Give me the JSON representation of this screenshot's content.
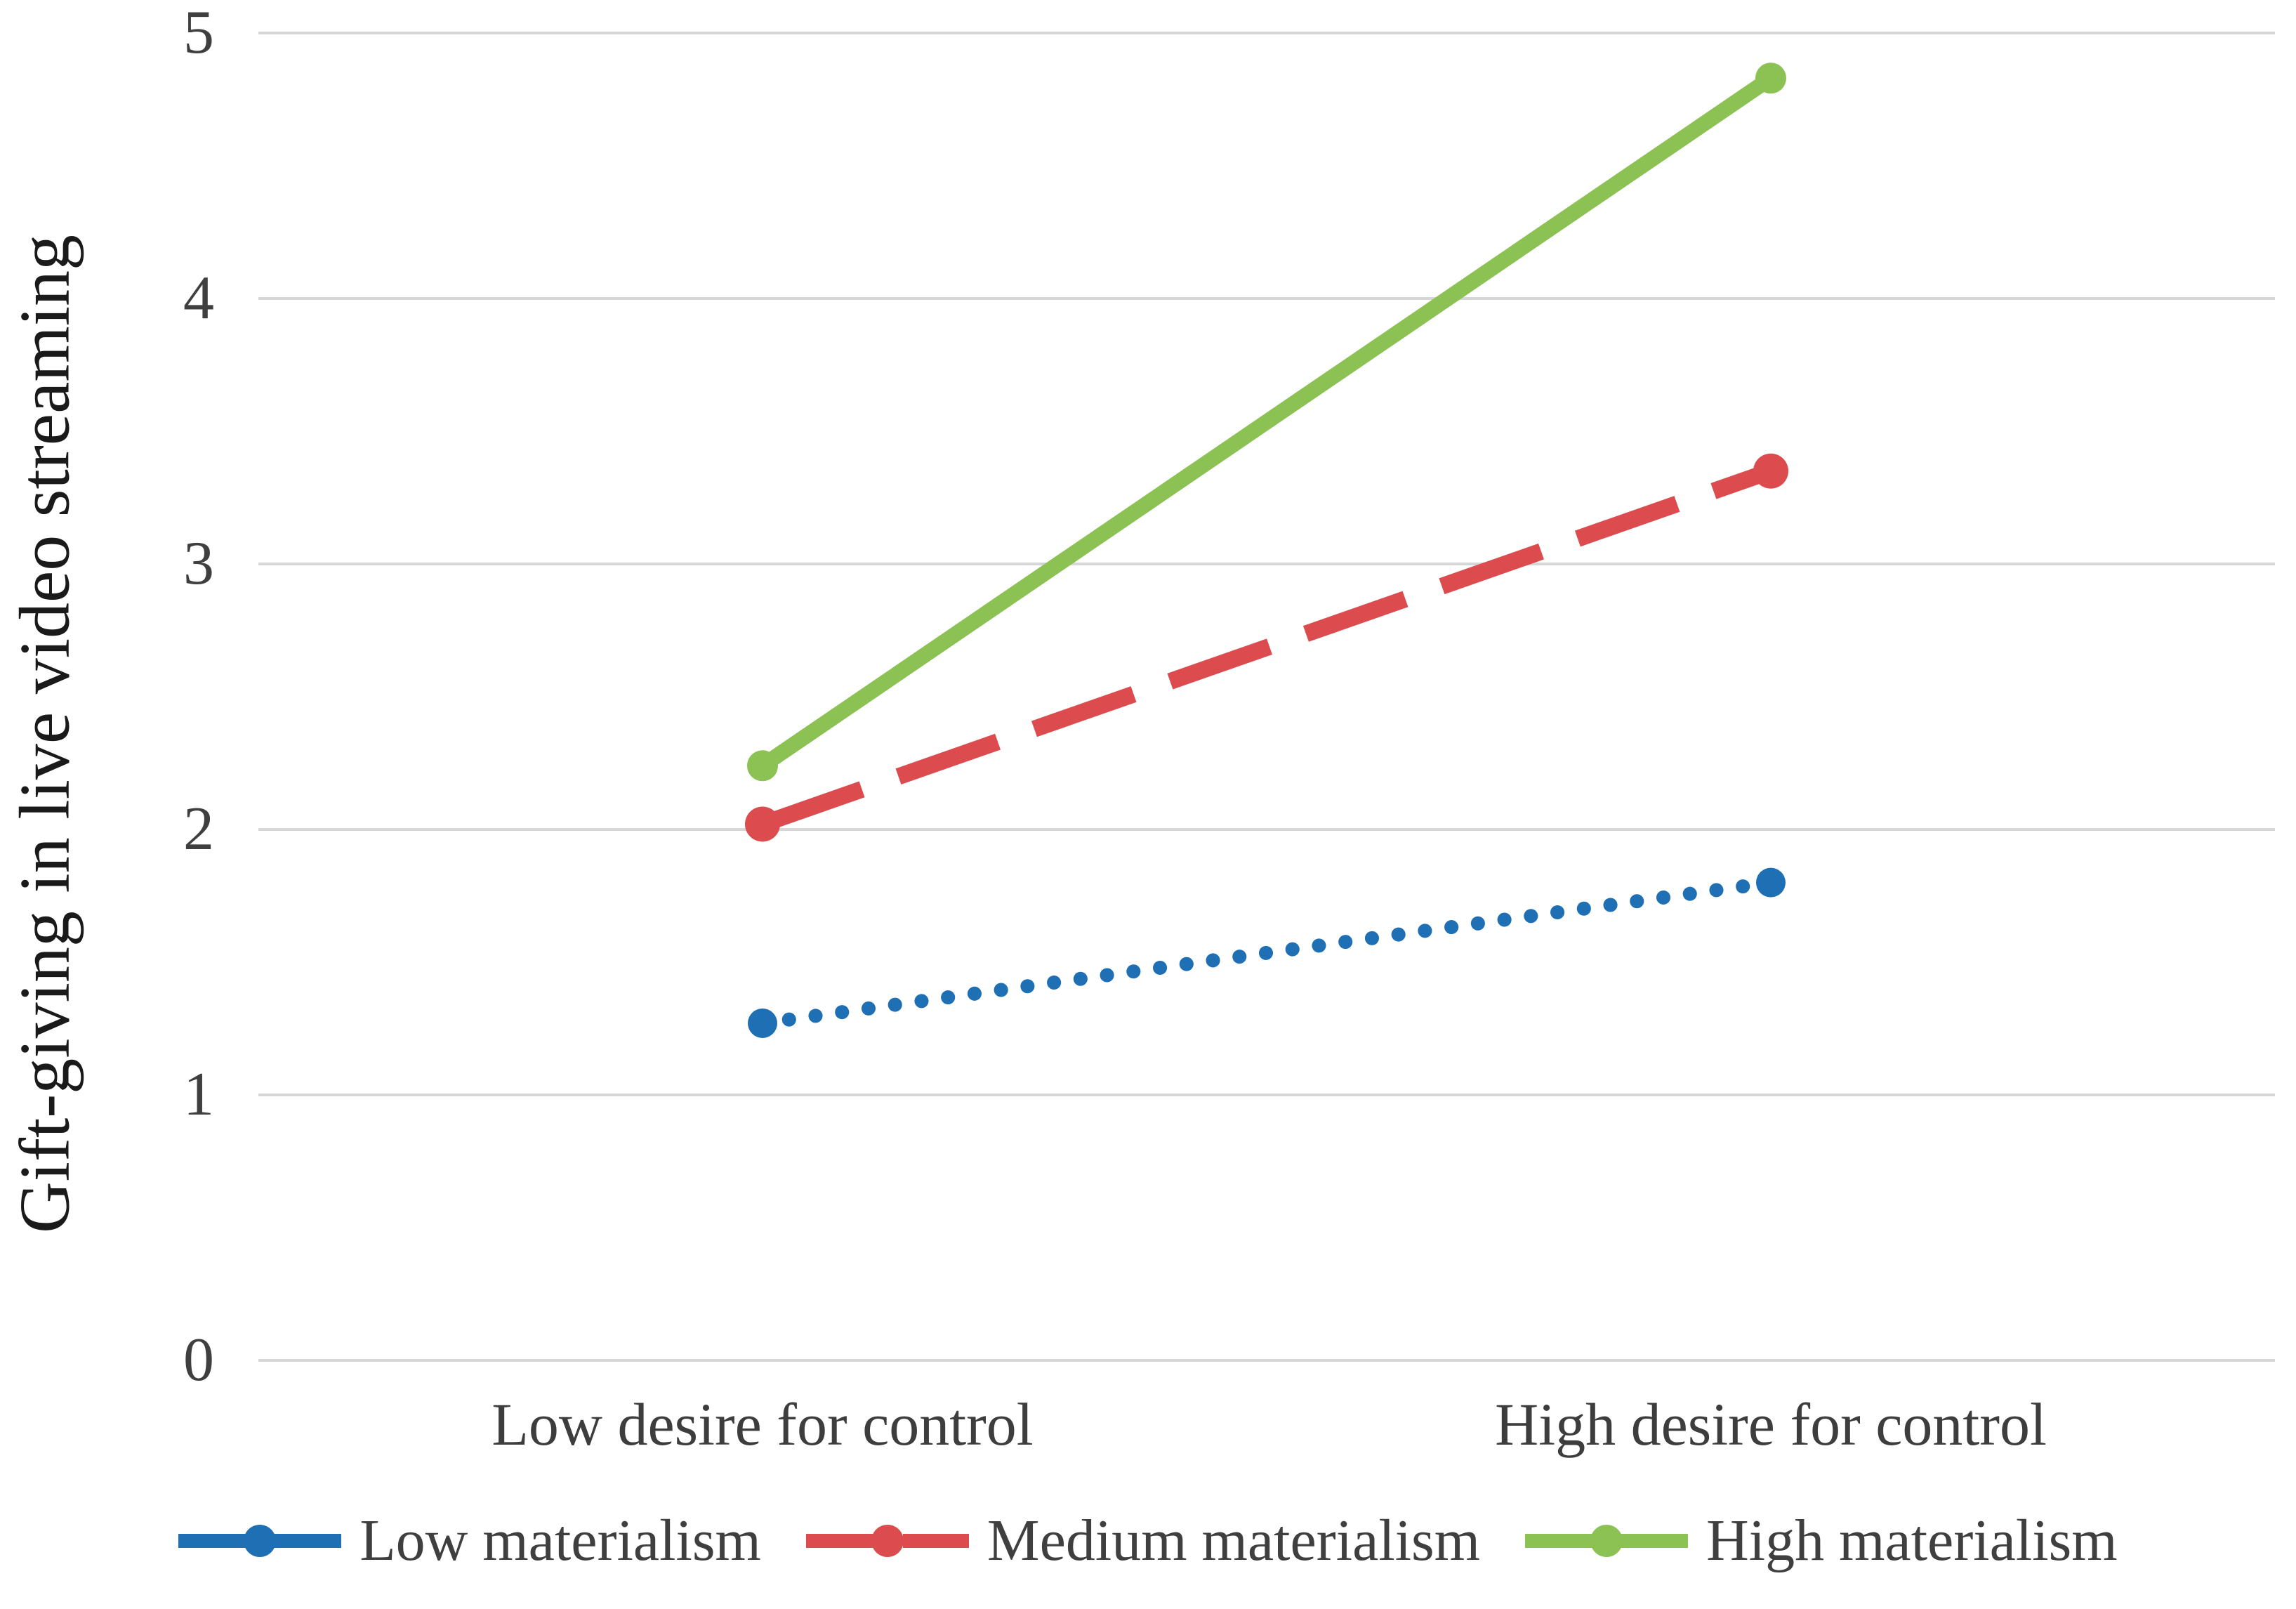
{
  "chart_data": {
    "type": "line",
    "categories": [
      "Low desire for control",
      "High desire for control"
    ],
    "series": [
      {
        "name": "Low materialism",
        "values": [
          1.27,
          1.8
        ],
        "color": "#1F6FB5",
        "line_style": "dotted",
        "legend_swatch": "solid-with-dot"
      },
      {
        "name": "Medium materialism",
        "values": [
          2.02,
          3.35
        ],
        "color": "#DC4B4E",
        "line_style": "dashed",
        "legend_swatch": "dashed-with-dot"
      },
      {
        "name": "High materialism",
        "values": [
          2.24,
          4.83
        ],
        "color": "#8CC153",
        "line_style": "solid",
        "legend_swatch": "solid-with-dot"
      }
    ],
    "title": "",
    "xlabel": "",
    "ylabel": "Gift-giving in live video streaming",
    "ylim": [
      0,
      5
    ],
    "yticks": [
      0,
      1,
      2,
      3,
      4,
      5
    ],
    "grid": "horizontal",
    "gridline_color": "#D6D6D6",
    "tick_text_color": "#3F3F3F",
    "axis_title_color": "#1a1a1a",
    "legend_position": "bottom"
  }
}
